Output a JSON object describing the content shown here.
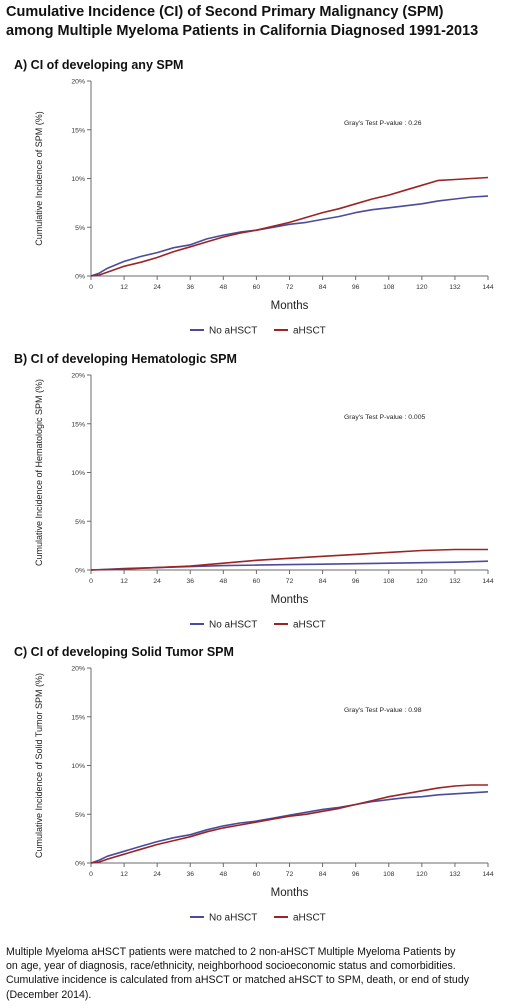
{
  "title": {
    "line1": "Cumulative Incidence (CI) of Second Primary Malignancy (SPM)",
    "line2": "among Multiple Myeloma Patients in California Diagnosed 1991-2013"
  },
  "colors": {
    "no_ahsct": "#4b4b9b",
    "ahsct": "#9b2424",
    "axis": "#6b6b6b"
  },
  "chart_data": [
    {
      "type": "line",
      "title": "A)  CI of developing any SPM",
      "xlabel": "Months",
      "ylabel": "Cumulative Incidence of SPM (%)",
      "annotation": "Gray's Test P-value : 0.26",
      "xlim": [
        0,
        144
      ],
      "ylim": [
        0,
        20
      ],
      "x_ticks": [
        0,
        12,
        24,
        36,
        48,
        60,
        72,
        84,
        96,
        108,
        120,
        132,
        144
      ],
      "y_ticks": [
        0,
        5,
        10,
        15,
        20
      ],
      "y_tick_labels": [
        "0%",
        "5%",
        "10%",
        "15%",
        "20%"
      ],
      "legend": [
        "No aHSCT",
        "aHSCT"
      ],
      "legend_position": "bottom-center",
      "series": [
        {
          "name": "No aHSCT",
          "color": "#4b4b9b",
          "x": [
            0,
            3,
            6,
            12,
            18,
            24,
            30,
            36,
            42,
            48,
            54,
            60,
            66,
            72,
            78,
            84,
            90,
            96,
            102,
            108,
            114,
            120,
            126,
            132,
            138,
            144
          ],
          "y": [
            0,
            0.3,
            0.8,
            1.5,
            2.0,
            2.4,
            2.9,
            3.2,
            3.8,
            4.2,
            4.5,
            4.7,
            5.0,
            5.3,
            5.5,
            5.8,
            6.1,
            6.5,
            6.8,
            7.0,
            7.2,
            7.4,
            7.7,
            7.9,
            8.1,
            8.2
          ]
        },
        {
          "name": "aHSCT",
          "color": "#9b2424",
          "x": [
            0,
            3,
            6,
            12,
            18,
            24,
            30,
            36,
            42,
            48,
            54,
            60,
            66,
            72,
            78,
            84,
            90,
            96,
            102,
            108,
            114,
            120,
            126,
            132,
            138,
            144
          ],
          "y": [
            0,
            0.1,
            0.4,
            1.0,
            1.4,
            1.9,
            2.5,
            3.0,
            3.5,
            4.0,
            4.4,
            4.7,
            5.1,
            5.5,
            6.0,
            6.5,
            6.9,
            7.4,
            7.9,
            8.3,
            8.8,
            9.3,
            9.8,
            9.9,
            10.0,
            10.1
          ]
        }
      ]
    },
    {
      "type": "line",
      "title": "B) CI of developing Hematologic SPM",
      "xlabel": "Months",
      "ylabel": "Cumulative Incidence of Hematologic SPM (%)",
      "annotation": "Gray's Test P-value : 0.005",
      "xlim": [
        0,
        144
      ],
      "ylim": [
        0,
        20
      ],
      "x_ticks": [
        0,
        12,
        24,
        36,
        48,
        60,
        72,
        84,
        96,
        108,
        120,
        132,
        144
      ],
      "y_ticks": [
        0,
        5,
        10,
        15,
        20
      ],
      "y_tick_labels": [
        "0%",
        "5%",
        "10%",
        "15%",
        "20%"
      ],
      "legend": [
        "No aHSCT",
        "aHSCT"
      ],
      "legend_position": "bottom-center",
      "series": [
        {
          "name": "No aHSCT",
          "color": "#4b4b9b",
          "x": [
            0,
            12,
            24,
            36,
            48,
            60,
            72,
            84,
            96,
            108,
            120,
            132,
            144
          ],
          "y": [
            0,
            0.15,
            0.25,
            0.35,
            0.45,
            0.5,
            0.55,
            0.6,
            0.65,
            0.7,
            0.75,
            0.8,
            0.9
          ]
        },
        {
          "name": "aHSCT",
          "color": "#9b2424",
          "x": [
            0,
            12,
            24,
            36,
            48,
            60,
            72,
            84,
            96,
            108,
            120,
            132,
            144
          ],
          "y": [
            0,
            0.1,
            0.25,
            0.4,
            0.7,
            1.0,
            1.2,
            1.4,
            1.6,
            1.8,
            2.0,
            2.1,
            2.1
          ]
        }
      ]
    },
    {
      "type": "line",
      "title": "C) CI of developing Solid Tumor SPM",
      "xlabel": "Months",
      "ylabel": "Cumulative Incidence of Solid Tumor SPM (%)",
      "annotation": "Gray's Test P-value : 0.98",
      "xlim": [
        0,
        144
      ],
      "ylim": [
        0,
        20
      ],
      "x_ticks": [
        0,
        12,
        24,
        36,
        48,
        60,
        72,
        84,
        96,
        108,
        120,
        132,
        144
      ],
      "y_ticks": [
        0,
        5,
        10,
        15,
        20
      ],
      "y_tick_labels": [
        "0%",
        "5%",
        "10%",
        "15%",
        "20%"
      ],
      "legend": [
        "No aHSCT",
        "aHSCT"
      ],
      "legend_position": "bottom-center",
      "series": [
        {
          "name": "No aHSCT",
          "color": "#4b4b9b",
          "x": [
            0,
            3,
            6,
            12,
            18,
            24,
            30,
            36,
            42,
            48,
            54,
            60,
            66,
            72,
            78,
            84,
            90,
            96,
            102,
            108,
            114,
            120,
            126,
            132,
            138,
            144
          ],
          "y": [
            0,
            0.3,
            0.7,
            1.2,
            1.7,
            2.2,
            2.6,
            2.9,
            3.4,
            3.8,
            4.1,
            4.3,
            4.6,
            4.9,
            5.2,
            5.5,
            5.7,
            6.0,
            6.3,
            6.5,
            6.7,
            6.8,
            7.0,
            7.1,
            7.2,
            7.3
          ]
        },
        {
          "name": "aHSCT",
          "color": "#9b2424",
          "x": [
            0,
            3,
            6,
            12,
            18,
            24,
            30,
            36,
            42,
            48,
            54,
            60,
            66,
            72,
            78,
            84,
            90,
            96,
            102,
            108,
            114,
            120,
            126,
            132,
            138,
            144
          ],
          "y": [
            0,
            0.1,
            0.4,
            0.9,
            1.4,
            1.9,
            2.3,
            2.7,
            3.2,
            3.6,
            3.9,
            4.2,
            4.5,
            4.8,
            5.0,
            5.3,
            5.6,
            6.0,
            6.4,
            6.8,
            7.1,
            7.4,
            7.7,
            7.9,
            8.0,
            8.0
          ]
        }
      ]
    }
  ],
  "footnote": {
    "line1": "Multiple Myeloma aHSCT patients were matched to 2 non-aHSCT Multiple Myeloma Patients by",
    "line2": "on age, year of diagnosis, race/ethnicity, neighborhood socioeconomic status and comorbidities.",
    "line3": "Cumulative incidence is calculated from aHSCT or matched aHSCT to SPM, death, or end of study",
    "line4": "(December 2014)."
  }
}
